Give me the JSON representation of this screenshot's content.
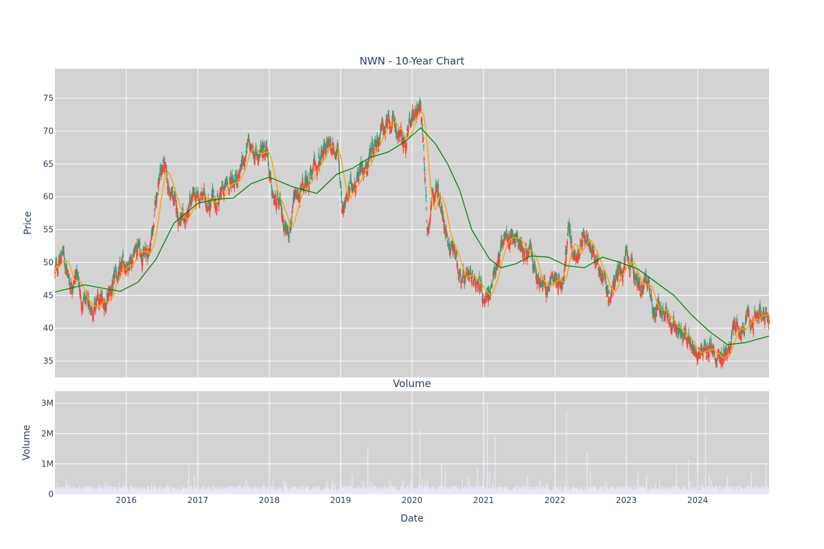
{
  "chart_data": [
    {
      "type": "candlestick",
      "title": "NWN - 10-Year Chart",
      "ylabel": "Price",
      "ylim": [
        32.5,
        79.5
      ],
      "y_ticks": [
        35,
        40,
        45,
        50,
        55,
        60,
        65,
        70,
        75
      ],
      "x_range": [
        "2015-01-01",
        "2024-12-31"
      ],
      "x_ticks": [
        "2016",
        "2017",
        "2018",
        "2019",
        "2020",
        "2021",
        "2022",
        "2023",
        "2024"
      ],
      "grid": true,
      "background": "#d3d3d3",
      "colors": {
        "up": "#3d9970",
        "down": "#ff4136",
        "ma_short": "#ffa500",
        "ma_long": "#008000"
      },
      "price_path": [
        [
          "2015-01-01",
          48.5
        ],
        [
          "2015-02-10",
          51.5
        ],
        [
          "2015-03-20",
          47.0
        ],
        [
          "2015-04-20",
          48.5
        ],
        [
          "2015-05-20",
          44.0
        ],
        [
          "2015-06-20",
          43.0
        ],
        [
          "2015-08-01",
          43.5
        ],
        [
          "2015-09-20",
          44.0
        ],
        [
          "2015-11-15",
          47.5
        ],
        [
          "2016-01-01",
          50.0
        ],
        [
          "2016-03-01",
          52.5
        ],
        [
          "2016-04-20",
          51.0
        ],
        [
          "2016-05-20",
          56.0
        ],
        [
          "2016-06-15",
          63.0
        ],
        [
          "2016-07-10",
          65.0
        ],
        [
          "2016-08-01",
          61.5
        ],
        [
          "2016-09-15",
          58.0
        ],
        [
          "2016-10-20",
          55.0
        ],
        [
          "2016-12-01",
          59.0
        ],
        [
          "2017-02-01",
          60.0
        ],
        [
          "2017-04-01",
          59.0
        ],
        [
          "2017-06-01",
          61.5
        ],
        [
          "2017-08-01",
          64.0
        ],
        [
          "2017-09-15",
          67.5
        ],
        [
          "2017-11-01",
          66.0
        ],
        [
          "2017-12-20",
          68.5
        ],
        [
          "2018-01-15",
          60.0
        ],
        [
          "2018-03-01",
          57.5
        ],
        [
          "2018-04-01",
          55.0
        ],
        [
          "2018-05-15",
          59.0
        ],
        [
          "2018-07-01",
          61.0
        ],
        [
          "2018-08-01",
          63.5
        ],
        [
          "2018-09-15",
          64.5
        ],
        [
          "2018-10-20",
          68.0
        ],
        [
          "2018-12-15",
          67.5
        ],
        [
          "2019-01-10",
          59.0
        ],
        [
          "2019-02-15",
          60.5
        ],
        [
          "2019-04-01",
          64.0
        ],
        [
          "2019-05-15",
          65.5
        ],
        [
          "2019-06-15",
          68.0
        ],
        [
          "2019-08-01",
          70.5
        ],
        [
          "2019-09-15",
          71.0
        ],
        [
          "2019-11-01",
          69.5
        ],
        [
          "2019-12-01",
          67.5
        ],
        [
          "2020-01-01",
          72.0
        ],
        [
          "2020-02-10",
          75.0
        ],
        [
          "2020-03-01",
          68.0
        ],
        [
          "2020-03-20",
          55.0
        ],
        [
          "2020-04-20",
          62.0
        ],
        [
          "2020-05-20",
          60.0
        ],
        [
          "2020-06-20",
          54.0
        ],
        [
          "2020-08-01",
          52.5
        ],
        [
          "2020-09-15",
          47.0
        ],
        [
          "2020-10-20",
          46.0
        ],
        [
          "2020-12-01",
          48.0
        ],
        [
          "2021-01-01",
          45.0
        ],
        [
          "2021-02-15",
          46.0
        ],
        [
          "2021-04-01",
          53.0
        ],
        [
          "2021-06-01",
          54.5
        ],
        [
          "2021-07-20",
          52.5
        ],
        [
          "2021-09-01",
          51.0
        ],
        [
          "2021-10-01",
          47.0
        ],
        [
          "2021-11-20",
          45.5
        ],
        [
          "2022-01-01",
          48.0
        ],
        [
          "2022-02-15",
          47.0
        ],
        [
          "2022-03-10",
          55.0
        ],
        [
          "2022-04-20",
          50.0
        ],
        [
          "2022-06-01",
          54.0
        ],
        [
          "2022-07-20",
          53.0
        ],
        [
          "2022-09-01",
          48.0
        ],
        [
          "2022-10-01",
          44.5
        ],
        [
          "2022-11-15",
          47.5
        ],
        [
          "2023-01-01",
          49.5
        ],
        [
          "2023-03-01",
          47.5
        ],
        [
          "2023-04-20",
          47.0
        ],
        [
          "2023-06-01",
          42.5
        ],
        [
          "2023-07-20",
          43.5
        ],
        [
          "2023-09-01",
          40.0
        ],
        [
          "2023-10-20",
          38.0
        ],
        [
          "2023-12-01",
          38.5
        ],
        [
          "2024-01-15",
          37.5
        ],
        [
          "2024-03-01",
          36.5
        ],
        [
          "2024-04-20",
          37.0
        ],
        [
          "2024-06-01",
          36.0
        ],
        [
          "2024-07-10",
          39.5
        ],
        [
          "2024-08-20",
          40.0
        ],
        [
          "2024-10-01",
          40.5
        ],
        [
          "2024-11-15",
          43.0
        ],
        [
          "2024-12-31",
          40.0
        ]
      ],
      "ma_long": [
        [
          "2015-01-01",
          45.5
        ],
        [
          "2015-06-01",
          46.6
        ],
        [
          "2015-12-01",
          45.6
        ],
        [
          "2016-03-01",
          47.0
        ],
        [
          "2016-06-01",
          50.5
        ],
        [
          "2016-09-01",
          56.0
        ],
        [
          "2017-01-01",
          59.0
        ],
        [
          "2017-04-01",
          59.6
        ],
        [
          "2017-07-01",
          59.8
        ],
        [
          "2017-10-01",
          62.0
        ],
        [
          "2018-01-01",
          63.0
        ],
        [
          "2018-05-01",
          61.5
        ],
        [
          "2018-09-01",
          60.5
        ],
        [
          "2018-12-15",
          63.5
        ],
        [
          "2019-03-01",
          64.3
        ],
        [
          "2019-06-01",
          66.0
        ],
        [
          "2019-09-01",
          66.8
        ],
        [
          "2019-12-01",
          68.5
        ],
        [
          "2020-02-15",
          70.5
        ],
        [
          "2020-05-01",
          68.0
        ],
        [
          "2020-07-01",
          65.0
        ],
        [
          "2020-09-01",
          61.0
        ],
        [
          "2020-11-01",
          55.0
        ],
        [
          "2021-02-01",
          50.5
        ],
        [
          "2021-04-01",
          49.2
        ],
        [
          "2021-06-15",
          49.8
        ],
        [
          "2021-09-01",
          51.0
        ],
        [
          "2021-12-01",
          50.8
        ],
        [
          "2022-03-01",
          49.5
        ],
        [
          "2022-06-01",
          49.2
        ],
        [
          "2022-09-01",
          50.8
        ],
        [
          "2022-12-01",
          50.0
        ],
        [
          "2023-03-01",
          49.0
        ],
        [
          "2023-06-01",
          47.0
        ],
        [
          "2023-09-01",
          45.0
        ],
        [
          "2023-12-01",
          42.0
        ],
        [
          "2024-03-01",
          39.5
        ],
        [
          "2024-06-01",
          37.5
        ],
        [
          "2024-09-01",
          37.8
        ],
        [
          "2024-12-31",
          38.8
        ]
      ]
    },
    {
      "type": "bar",
      "title": "Volume",
      "xlabel": "Date",
      "ylabel": "Volume",
      "ylim": [
        0,
        3400000
      ],
      "y_ticks": [
        0,
        1000000,
        2000000,
        3000000
      ],
      "y_tick_labels": [
        "0",
        "1M",
        "2M",
        "3M"
      ],
      "bar_color": "#e8e8f8",
      "baseline": 160000,
      "spikes": [
        [
          "2015-03-01",
          450000
        ],
        [
          "2016-11-15",
          950000
        ],
        [
          "2016-12-15",
          600000
        ],
        [
          "2018-01-01",
          450000
        ],
        [
          "2019-03-01",
          650000
        ],
        [
          "2019-05-20",
          1500000
        ],
        [
          "2020-02-10",
          2100000
        ],
        [
          "2020-03-20",
          500000
        ],
        [
          "2020-06-01",
          1000000
        ],
        [
          "2020-06-20",
          750000
        ],
        [
          "2020-12-01",
          900000
        ],
        [
          "2021-01-20",
          3000000
        ],
        [
          "2021-02-01",
          700000
        ],
        [
          "2021-03-01",
          1850000
        ],
        [
          "2021-08-15",
          600000
        ],
        [
          "2021-10-15",
          450000
        ],
        [
          "2022-03-01",
          2700000
        ],
        [
          "2022-06-15",
          1400000
        ],
        [
          "2022-07-01",
          750000
        ],
        [
          "2023-01-01",
          1100000
        ],
        [
          "2023-03-01",
          700000
        ],
        [
          "2023-04-15",
          650000
        ],
        [
          "2023-09-15",
          1000000
        ],
        [
          "2023-11-15",
          1150000
        ],
        [
          "2024-01-01",
          850000
        ],
        [
          "2024-02-10",
          3200000
        ],
        [
          "2024-03-01",
          650000
        ],
        [
          "2024-06-01",
          600000
        ],
        [
          "2024-10-01",
          750000
        ],
        [
          "2024-12-15",
          950000
        ]
      ]
    }
  ]
}
